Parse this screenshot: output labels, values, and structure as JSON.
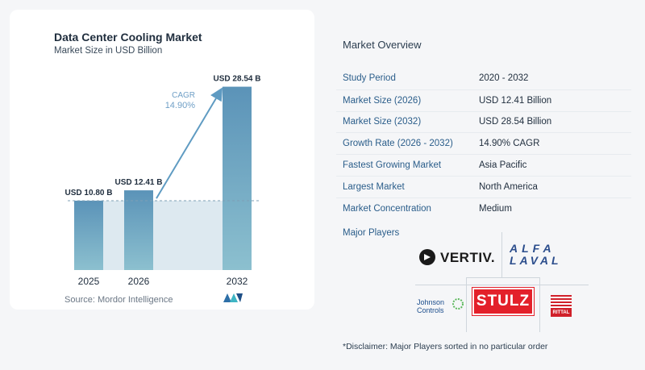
{
  "chart_data": {
    "type": "bar",
    "title": "Data Center Cooling Market",
    "subtitle": "Market Size in USD Billion",
    "categories": [
      "2025",
      "2026",
      "2032"
    ],
    "values": [
      10.8,
      12.41,
      28.54
    ],
    "value_labels": [
      "USD 10.80 B",
      "USD 12.41 B",
      "USD 28.54 B"
    ],
    "cagr_label": "CAGR",
    "cagr_value": "14.90%",
    "ylim": [
      0,
      32
    ],
    "grid": false,
    "colors": {
      "bar_top": "#5b93b8",
      "bar_bottom": "#8cc0cf",
      "baseline_band": "#dde9f0",
      "arrow": "#5f9bc2",
      "cagr_text": "#6f9fc6"
    }
  },
  "source": "Source:  Mordor Intelligence",
  "brand_icon": "mordor-intelligence-logo",
  "overview": {
    "title": "Market Overview",
    "rows": [
      {
        "label": "Study Period",
        "value": "2020 - 2032"
      },
      {
        "label": "Market Size (2026)",
        "value": "USD 12.41 Billion"
      },
      {
        "label": "Market Size (2032)",
        "value": "USD 28.54 Billion"
      },
      {
        "label": "Growth Rate (2026 - 2032)",
        "value": "14.90% CAGR"
      },
      {
        "label": "Fastest Growing Market",
        "value": "Asia Pacific"
      },
      {
        "label": "Largest Market",
        "value": "North America"
      },
      {
        "label": "Market Concentration",
        "value": "Medium"
      }
    ]
  },
  "players": {
    "title": "Major Players",
    "vertiv": "VERTIV.",
    "alfa_top": "ALFA",
    "alfa_bottom": "LAVAL",
    "johnson_1": "Johnson",
    "johnson_2": "Controls",
    "stulz": "STULZ",
    "rittal": "RITTAL"
  },
  "disclaimer": "*Disclaimer: Major Players sorted in no particular order"
}
